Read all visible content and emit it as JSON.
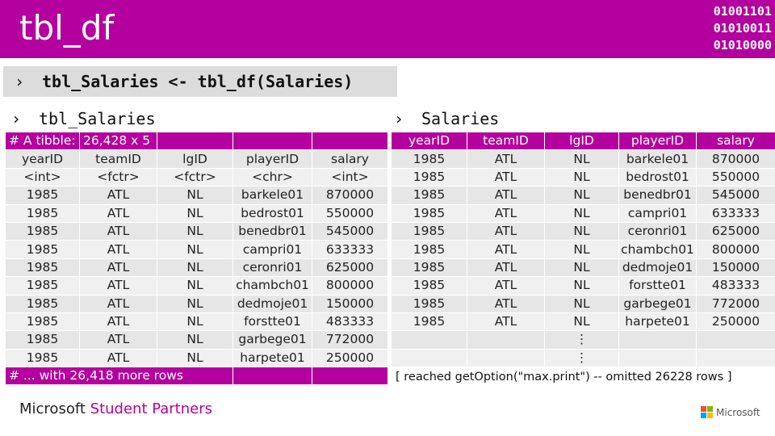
{
  "header": {
    "title": "tbl_df",
    "binary": [
      "01001101",
      "01010011",
      "01010000"
    ]
  },
  "code": {
    "chevron": "›",
    "text": "tbl_Salaries <- tbl_df(Salaries)"
  },
  "left": {
    "chevron": "›",
    "label": "tbl_Salaries",
    "tibble_caption": [
      "# A tibble:",
      "26,428 x 5"
    ],
    "columns": [
      "yearID",
      "teamID",
      "lgID",
      "playerID",
      "salary"
    ],
    "types": [
      "<int>",
      "<fctr>",
      "<fctr>",
      "<chr>",
      "<int>"
    ],
    "rows": [
      [
        "1985",
        "ATL",
        "NL",
        "barkele01",
        "870000"
      ],
      [
        "1985",
        "ATL",
        "NL",
        "bedrost01",
        "550000"
      ],
      [
        "1985",
        "ATL",
        "NL",
        "benedbr01",
        "545000"
      ],
      [
        "1985",
        "ATL",
        "NL",
        "campri01",
        "633333"
      ],
      [
        "1985",
        "ATL",
        "NL",
        "ceronri01",
        "625000"
      ],
      [
        "1985",
        "ATL",
        "NL",
        "chambch01",
        "800000"
      ],
      [
        "1985",
        "ATL",
        "NL",
        "dedmoje01",
        "150000"
      ],
      [
        "1985",
        "ATL",
        "NL",
        "forstte01",
        "483333"
      ],
      [
        "1985",
        "ATL",
        "NL",
        "garbege01",
        "772000"
      ],
      [
        "1985",
        "ATL",
        "NL",
        "harpete01",
        "250000"
      ]
    ],
    "footer": "# ... with 26,418 more rows"
  },
  "right": {
    "chevron": "›",
    "label": "Salaries",
    "columns": [
      "yearID",
      "teamID",
      "lgID",
      "playerID",
      "salary"
    ],
    "rows": [
      [
        "1985",
        "ATL",
        "NL",
        "barkele01",
        "870000"
      ],
      [
        "1985",
        "ATL",
        "NL",
        "bedrost01",
        "550000"
      ],
      [
        "1985",
        "ATL",
        "NL",
        "benedbr01",
        "545000"
      ],
      [
        "1985",
        "ATL",
        "NL",
        "campri01",
        "633333"
      ],
      [
        "1985",
        "ATL",
        "NL",
        "ceronri01",
        "625000"
      ],
      [
        "1985",
        "ATL",
        "NL",
        "chambch01",
        "800000"
      ],
      [
        "1985",
        "ATL",
        "NL",
        "dedmoje01",
        "150000"
      ],
      [
        "1985",
        "ATL",
        "NL",
        "forstte01",
        "483333"
      ],
      [
        "1985",
        "ATL",
        "NL",
        "garbege01",
        "772000"
      ],
      [
        "1985",
        "ATL",
        "NL",
        "harpete01",
        "250000"
      ]
    ],
    "ellipsis": [
      "⋮",
      "⋮"
    ],
    "footnote": "[ reached getOption(\"max.print\") -- omitted 26228 rows ]"
  },
  "footer": {
    "brand_primary": "Microsoft",
    "brand_accent": "Student Partners",
    "logo_text": "Microsoft",
    "logo_colors": [
      "#f25022",
      "#7fba00",
      "#00a4ef",
      "#ffb900"
    ]
  }
}
